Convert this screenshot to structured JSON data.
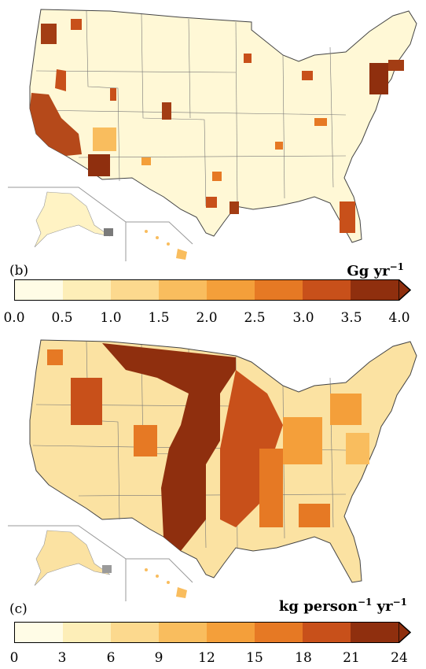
{
  "panels": [
    {
      "label": "",
      "units_main": "",
      "units_sup": "",
      "units_tail": "",
      "colorbar_ticks": []
    },
    {
      "label": "(b)",
      "units_main": "Gg yr",
      "units_sup": "−1",
      "units_tail": "",
      "colorbar_ticks": [
        "0.0",
        "0.5",
        "1.0",
        "1.5",
        "2.0",
        "2.5",
        "3.0",
        "3.5",
        "4.0"
      ],
      "colors": [
        "#fffce6",
        "#fdeeb8",
        "#fcd98e",
        "#f9bd5e",
        "#f49f3a",
        "#e67924",
        "#c8501a",
        "#8f2f0e"
      ]
    },
    {
      "label": "(c)",
      "units_main": "kg person",
      "units_sup": "−1",
      "units_tail": " yr",
      "units_sup2": "−1",
      "colorbar_ticks": [
        "0",
        "3",
        "6",
        "9",
        "12",
        "15",
        "18",
        "21",
        "24"
      ],
      "colors": [
        "#fffce6",
        "#fdeeb8",
        "#fcd98e",
        "#f9bd5e",
        "#f49f3a",
        "#e67924",
        "#c8501a",
        "#8f2f0e"
      ]
    }
  ],
  "map_colors": {
    "land_low": "#fff8d6",
    "land_mid": "#fbe2a2",
    "land_high": "#f2a548",
    "land_max": "#8f2f0e",
    "border": "#444444",
    "inset_border": "#888888"
  }
}
